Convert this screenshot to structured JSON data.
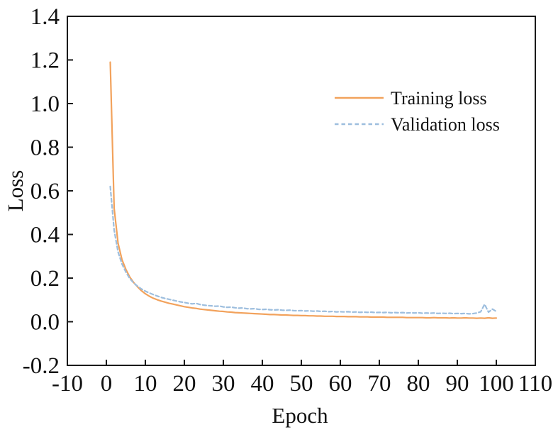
{
  "figure": {
    "background_color": "#ffffff",
    "spine_color": "#1a1a1a",
    "text_color": "#111111"
  },
  "legend": {
    "entries": [
      {
        "label": "Training loss",
        "style": "solid"
      },
      {
        "label": "Validation loss",
        "style": "dashed"
      }
    ]
  },
  "chart_data": {
    "type": "line",
    "title": "",
    "xlabel": "Epoch",
    "ylabel": "Loss",
    "xlim": [
      -10,
      110
    ],
    "ylim": [
      -0.2,
      1.4
    ],
    "x_ticks": [
      -10,
      0,
      10,
      20,
      30,
      40,
      50,
      60,
      70,
      80,
      90,
      100,
      110
    ],
    "y_ticks": [
      -0.2,
      0.0,
      0.2,
      0.4,
      0.6,
      0.8,
      1.0,
      1.2,
      1.4
    ],
    "grid": false,
    "legend_position": "upper-right-inside",
    "x": [
      1,
      2,
      3,
      4,
      5,
      6,
      7,
      8,
      9,
      10,
      11,
      12,
      13,
      14,
      15,
      16,
      17,
      18,
      19,
      20,
      21,
      22,
      23,
      24,
      25,
      26,
      27,
      28,
      29,
      30,
      31,
      32,
      33,
      34,
      35,
      36,
      37,
      38,
      39,
      40,
      41,
      42,
      43,
      44,
      45,
      46,
      47,
      48,
      49,
      50,
      51,
      52,
      53,
      54,
      55,
      56,
      57,
      58,
      59,
      60,
      61,
      62,
      63,
      64,
      65,
      66,
      67,
      68,
      69,
      70,
      71,
      72,
      73,
      74,
      75,
      76,
      77,
      78,
      79,
      80,
      81,
      82,
      83,
      84,
      85,
      86,
      87,
      88,
      89,
      90,
      91,
      92,
      93,
      94,
      95,
      96,
      97,
      98,
      99,
      100
    ],
    "series": [
      {
        "name": "Training loss",
        "color": "#F2A25C",
        "line_style": "solid",
        "values": [
          1.19,
          0.52,
          0.36,
          0.285,
          0.24,
          0.205,
          0.18,
          0.16,
          0.142,
          0.128,
          0.117,
          0.108,
          0.101,
          0.095,
          0.09,
          0.085,
          0.081,
          0.077,
          0.073,
          0.069,
          0.066,
          0.063,
          0.061,
          0.058,
          0.056,
          0.054,
          0.052,
          0.05,
          0.048,
          0.047,
          0.045,
          0.044,
          0.042,
          0.041,
          0.04,
          0.039,
          0.038,
          0.037,
          0.036,
          0.035,
          0.034,
          0.033,
          0.033,
          0.032,
          0.031,
          0.031,
          0.03,
          0.029,
          0.029,
          0.028,
          0.028,
          0.027,
          0.027,
          0.026,
          0.026,
          0.025,
          0.025,
          0.025,
          0.024,
          0.024,
          0.024,
          0.023,
          0.023,
          0.023,
          0.022,
          0.022,
          0.022,
          0.021,
          0.021,
          0.021,
          0.021,
          0.02,
          0.02,
          0.02,
          0.02,
          0.02,
          0.019,
          0.019,
          0.019,
          0.019,
          0.019,
          0.018,
          0.018,
          0.019,
          0.018,
          0.018,
          0.018,
          0.017,
          0.018,
          0.017,
          0.017,
          0.018,
          0.017,
          0.017,
          0.016,
          0.017,
          0.016,
          0.018,
          0.016,
          0.017
        ]
      },
      {
        "name": "Validation loss",
        "color": "#9DBEDE",
        "line_style": "dashed",
        "values": [
          0.62,
          0.42,
          0.32,
          0.265,
          0.228,
          0.198,
          0.178,
          0.163,
          0.15,
          0.14,
          0.132,
          0.125,
          0.118,
          0.112,
          0.107,
          0.103,
          0.099,
          0.095,
          0.091,
          0.088,
          0.085,
          0.082,
          0.084,
          0.079,
          0.076,
          0.074,
          0.073,
          0.071,
          0.072,
          0.068,
          0.066,
          0.067,
          0.064,
          0.062,
          0.063,
          0.06,
          0.059,
          0.06,
          0.057,
          0.056,
          0.057,
          0.055,
          0.054,
          0.055,
          0.053,
          0.052,
          0.053,
          0.051,
          0.05,
          0.051,
          0.049,
          0.05,
          0.048,
          0.049,
          0.047,
          0.048,
          0.046,
          0.047,
          0.045,
          0.046,
          0.045,
          0.046,
          0.044,
          0.045,
          0.043,
          0.044,
          0.043,
          0.044,
          0.042,
          0.043,
          0.042,
          0.043,
          0.041,
          0.042,
          0.041,
          0.042,
          0.04,
          0.041,
          0.04,
          0.041,
          0.039,
          0.04,
          0.039,
          0.04,
          0.038,
          0.039,
          0.038,
          0.039,
          0.037,
          0.038,
          0.037,
          0.038,
          0.036,
          0.037,
          0.04,
          0.046,
          0.08,
          0.044,
          0.058,
          0.047
        ]
      }
    ]
  }
}
